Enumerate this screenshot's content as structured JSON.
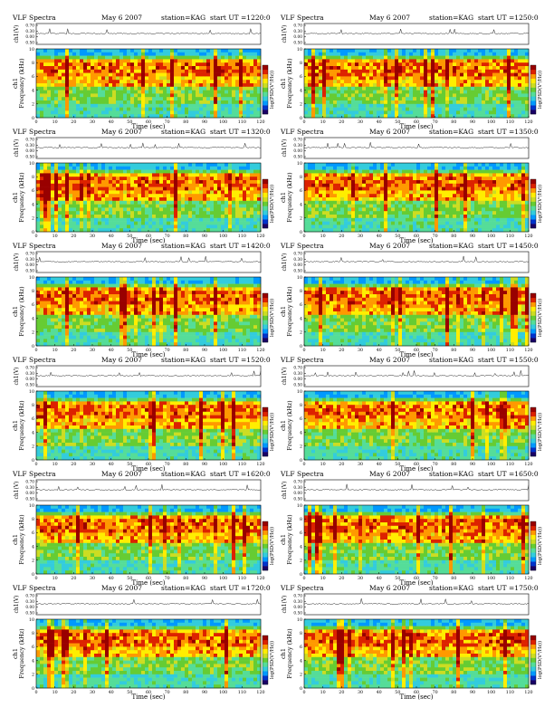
{
  "chart_data": [
    {
      "type": "heatmap",
      "title": "VLF Spectra",
      "date": "May 6 2007",
      "station": "station=KAG",
      "start": "start  UT  =1220:0",
      "ylabel_top": "ch1(V)",
      "ylabel_main": "ch1\nFrequency (kHz)",
      "cbar_label": "log(PSD(V²/Hz))",
      "xlabel": "Time (sec)",
      "xlim": [
        0,
        120
      ],
      "ylim": [
        0,
        10
      ],
      "xticks": [
        "0",
        "10",
        "20",
        "30",
        "40",
        "50",
        "60",
        "70",
        "80",
        "90",
        "100",
        "110",
        "120"
      ],
      "yticks": [
        "0",
        "2",
        "4",
        "6",
        "8",
        "10"
      ],
      "top_yticks": [
        "0.70",
        "0.30",
        "0.00",
        "0.50"
      ]
    },
    {
      "type": "heatmap",
      "title": "VLF Spectra",
      "date": "May 6 2007",
      "station": "station=KAG",
      "start": "start  UT  =1250:0",
      "ylabel_top": "ch1(V)",
      "ylabel_main": "ch1\nFrequency (kHz)",
      "cbar_label": "log(PSD(V²/Hz))",
      "xlabel": "Time (sec)",
      "xlim": [
        0,
        120
      ],
      "ylim": [
        0,
        10
      ],
      "xticks": [
        "0",
        "10",
        "20",
        "30",
        "40",
        "50",
        "60",
        "70",
        "80",
        "90",
        "100",
        "110",
        "120"
      ],
      "yticks": [
        "0",
        "2",
        "4",
        "6",
        "8",
        "10"
      ],
      "top_yticks": [
        "0.70",
        "0.30",
        "0.00",
        "0.50"
      ]
    },
    {
      "type": "heatmap",
      "title": "VLF Spectra",
      "date": "May 6 2007",
      "station": "station=KAG",
      "start": "start  UT  =1320:0",
      "ylabel_top": "ch1(V)",
      "ylabel_main": "ch1\nFrequency (kHz)",
      "cbar_label": "log(PSD(V²/Hz))",
      "xlabel": "Time (sec)",
      "xlim": [
        0,
        120
      ],
      "ylim": [
        0,
        10
      ],
      "xticks": [
        "0",
        "10",
        "20",
        "30",
        "40",
        "50",
        "60",
        "70",
        "80",
        "90",
        "100",
        "110",
        "120"
      ],
      "yticks": [
        "0",
        "2",
        "4",
        "6",
        "8",
        "10"
      ],
      "top_yticks": [
        "0.70",
        "0.30",
        "0.00",
        "0.50"
      ]
    },
    {
      "type": "heatmap",
      "title": "VLF Spectra",
      "date": "May 6 2007",
      "station": "station=KAG",
      "start": "start  UT  =1350:0",
      "ylabel_top": "ch1(V)",
      "ylabel_main": "ch1\nFrequency (kHz)",
      "cbar_label": "log(PSD(V²/Hz))",
      "xlabel": "Time (sec)",
      "xlim": [
        0,
        120
      ],
      "ylim": [
        0,
        10
      ],
      "xticks": [
        "0",
        "10",
        "20",
        "30",
        "40",
        "50",
        "60",
        "70",
        "80",
        "90",
        "100",
        "110",
        "120"
      ],
      "yticks": [
        "0",
        "2",
        "4",
        "6",
        "8",
        "10"
      ],
      "top_yticks": [
        "0.70",
        "0.30",
        "0.00",
        "0.50"
      ]
    },
    {
      "type": "heatmap",
      "title": "VLF Spectra",
      "date": "May 6 2007",
      "station": "station=KAG",
      "start": "start  UT  =1420:0",
      "ylabel_top": "ch1(V)",
      "ylabel_main": "ch1\nFrequency (kHz)",
      "cbar_label": "log(PSD(V²/Hz))",
      "xlabel": "Time (sec)",
      "xlim": [
        0,
        120
      ],
      "ylim": [
        0,
        10
      ],
      "xticks": [
        "0",
        "10",
        "20",
        "30",
        "40",
        "50",
        "60",
        "70",
        "80",
        "90",
        "100",
        "110",
        "120"
      ],
      "yticks": [
        "0",
        "2",
        "4",
        "6",
        "8",
        "10"
      ],
      "top_yticks": [
        "0.70",
        "0.30",
        "0.00",
        "0.50"
      ]
    },
    {
      "type": "heatmap",
      "title": "VLF Spectra",
      "date": "May 6 2007",
      "station": "station=KAG",
      "start": "start  UT  =1450:0",
      "ylabel_top": "ch1(V)",
      "ylabel_main": "ch1\nFrequency (kHz)",
      "cbar_label": "log(PSD(V²/Hz))",
      "xlabel": "Time (sec)",
      "xlim": [
        0,
        120
      ],
      "ylim": [
        0,
        10
      ],
      "xticks": [
        "0",
        "10",
        "20",
        "30",
        "40",
        "50",
        "60",
        "70",
        "80",
        "90",
        "100",
        "110",
        "120"
      ],
      "yticks": [
        "0",
        "2",
        "4",
        "6",
        "8",
        "10"
      ],
      "top_yticks": [
        "0.70",
        "0.30",
        "0.00",
        "0.50"
      ]
    },
    {
      "type": "heatmap",
      "title": "VLF Spectra",
      "date": "May 6 2007",
      "station": "station=KAG",
      "start": "start  UT  =1520:0",
      "ylabel_top": "ch1(V)",
      "ylabel_main": "ch1\nFrequency (kHz)",
      "cbar_label": "log(PSD(V²/Hz))",
      "xlabel": "Time (sec)",
      "xlim": [
        0,
        120
      ],
      "ylim": [
        0,
        10
      ],
      "xticks": [
        "0",
        "10",
        "20",
        "30",
        "40",
        "50",
        "60",
        "70",
        "80",
        "90",
        "100",
        "110",
        "120"
      ],
      "yticks": [
        "0",
        "2",
        "4",
        "6",
        "8",
        "10"
      ],
      "top_yticks": [
        "0.70",
        "0.30",
        "0.00",
        "0.50"
      ]
    },
    {
      "type": "heatmap",
      "title": "VLF Spectra",
      "date": "May 6 2007",
      "station": "station=KAG",
      "start": "start  UT  =1550:0",
      "ylabel_top": "ch1(V)",
      "ylabel_main": "ch1\nFrequency (kHz)",
      "cbar_label": "log(PSD(V²/Hz))",
      "xlabel": "Time (sec)",
      "xlim": [
        0,
        120
      ],
      "ylim": [
        0,
        10
      ],
      "xticks": [
        "0",
        "10",
        "20",
        "30",
        "40",
        "50",
        "60",
        "70",
        "80",
        "90",
        "100",
        "110",
        "120"
      ],
      "yticks": [
        "0",
        "2",
        "4",
        "6",
        "8",
        "10"
      ],
      "top_yticks": [
        "0.70",
        "0.30",
        "0.00",
        "0.50"
      ]
    },
    {
      "type": "heatmap",
      "title": "VLF Spectra",
      "date": "May 6 2007",
      "station": "station=KAG",
      "start": "start  UT  =1620:0",
      "ylabel_top": "ch1(V)",
      "ylabel_main": "ch1\nFrequency (kHz)",
      "cbar_label": "log(PSD(V²/Hz))",
      "xlabel": "Time (sec)",
      "xlim": [
        0,
        120
      ],
      "ylim": [
        0,
        10
      ],
      "xticks": [
        "0",
        "10",
        "20",
        "30",
        "40",
        "50",
        "60",
        "70",
        "80",
        "90",
        "100",
        "110",
        "120"
      ],
      "yticks": [
        "0",
        "2",
        "4",
        "6",
        "8",
        "10"
      ],
      "top_yticks": [
        "0.70",
        "0.30",
        "0.00",
        "0.50"
      ]
    },
    {
      "type": "heatmap",
      "title": "VLF Spectra",
      "date": "May 6 2007",
      "station": "station=KAG",
      "start": "start  UT  =1650:0",
      "ylabel_top": "ch1(V)",
      "ylabel_main": "ch1\nFrequency (kHz)",
      "cbar_label": "log(PSD(V²/Hz))",
      "xlabel": "Time (sec)",
      "xlim": [
        0,
        120
      ],
      "ylim": [
        0,
        10
      ],
      "xticks": [
        "0",
        "10",
        "20",
        "30",
        "40",
        "50",
        "60",
        "70",
        "80",
        "90",
        "100",
        "110",
        "120"
      ],
      "yticks": [
        "0",
        "2",
        "4",
        "6",
        "8",
        "10"
      ],
      "top_yticks": [
        "0.70",
        "0.30",
        "0.00",
        "0.50"
      ]
    },
    {
      "type": "heatmap",
      "title": "VLF Spectra",
      "date": "May 6 2007",
      "station": "station=KAG",
      "start": "start  UT  =1720:0",
      "ylabel_top": "ch1(V)",
      "ylabel_main": "ch1\nFrequency (kHz)",
      "cbar_label": "log(PSD(V²/Hz))",
      "xlabel": "Time (sec)",
      "xlim": [
        0,
        120
      ],
      "ylim": [
        0,
        10
      ],
      "xticks": [
        "0",
        "10",
        "20",
        "30",
        "40",
        "50",
        "60",
        "70",
        "80",
        "90",
        "100",
        "110",
        "120"
      ],
      "yticks": [
        "0",
        "2",
        "4",
        "6",
        "8",
        "10"
      ],
      "top_yticks": [
        "0.70",
        "0.30",
        "0.00",
        "0.50"
      ]
    },
    {
      "type": "heatmap",
      "title": "VLF Spectra",
      "date": "May 6 2007",
      "station": "station=KAG",
      "start": "start  UT  =1750:0",
      "ylabel_top": "ch1(V)",
      "ylabel_main": "ch1\nFrequency (kHz)",
      "cbar_label": "log(PSD(V²/Hz))",
      "xlabel": "Time (sec)",
      "xlim": [
        0,
        120
      ],
      "ylim": [
        0,
        10
      ],
      "xticks": [
        "0",
        "10",
        "20",
        "30",
        "40",
        "50",
        "60",
        "70",
        "80",
        "90",
        "100",
        "110",
        "120"
      ],
      "yticks": [
        "0",
        "2",
        "4",
        "6",
        "8",
        "10"
      ],
      "top_yticks": [
        "0.70",
        "0.30",
        "0.00",
        "0.50"
      ]
    }
  ],
  "colormap": [
    "#1a0066",
    "#0033cc",
    "#0099ff",
    "#33ccdd",
    "#55dd99",
    "#66cc33",
    "#ccdd22",
    "#ffee00",
    "#ff9900",
    "#dd2200",
    "#990000"
  ]
}
